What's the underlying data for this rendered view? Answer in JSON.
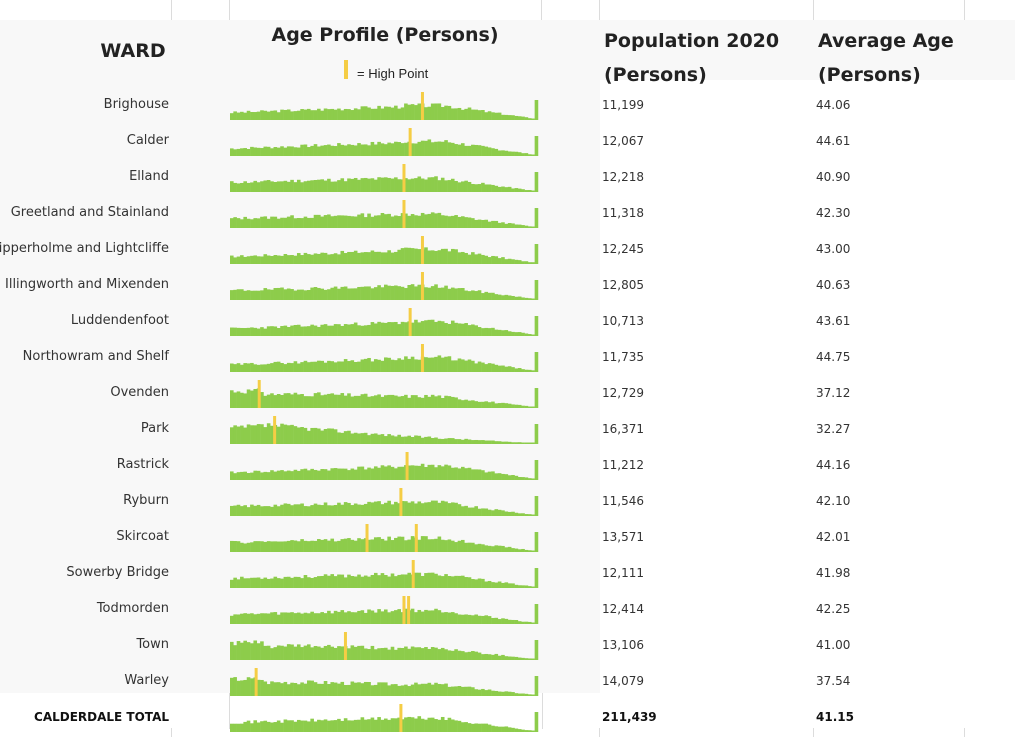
{
  "headers": {
    "ward": "WARD",
    "age_profile": "Age Profile (Persons)",
    "population_line1": "Population 2020",
    "population_line2": "(Persons)",
    "average_line1": "Average Age",
    "average_line2": "(Persons)"
  },
  "legend": {
    "label": "= High Point",
    "color": "#f5cd45"
  },
  "colors": {
    "bar": "#8dcc4b",
    "highlight": "#f5cd45"
  },
  "rows": [
    {
      "ward": "Brighouse",
      "population": "11,199",
      "average_age": "44.06",
      "peak": [
        0.62
      ],
      "seed": 3,
      "profile": "older"
    },
    {
      "ward": "Calder",
      "population": "12,067",
      "average_age": "44.61",
      "peak": [
        0.58
      ],
      "seed": 7,
      "profile": "older"
    },
    {
      "ward": "Elland",
      "population": "12,218",
      "average_age": "40.90",
      "peak": [
        0.56
      ],
      "seed": 11,
      "profile": "mid"
    },
    {
      "ward": "Greetland and Stainland",
      "population": "11,318",
      "average_age": "42.30",
      "peak": [
        0.56
      ],
      "seed": 13,
      "profile": "mid"
    },
    {
      "ward": "Hipperholme and Lightcliffe",
      "population": "12,245",
      "average_age": "43.00",
      "peak": [
        0.62
      ],
      "seed": 17,
      "profile": "older"
    },
    {
      "ward": "Illingworth and Mixenden",
      "population": "12,805",
      "average_age": "40.63",
      "peak": [
        0.62
      ],
      "seed": 19,
      "profile": "mid"
    },
    {
      "ward": "Luddendenfoot",
      "population": "10,713",
      "average_age": "43.61",
      "peak": [
        0.58
      ],
      "seed": 23,
      "profile": "older"
    },
    {
      "ward": "Northowram and Shelf",
      "population": "11,735",
      "average_age": "44.75",
      "peak": [
        0.62
      ],
      "seed": 29,
      "profile": "older"
    },
    {
      "ward": "Ovenden",
      "population": "12,729",
      "average_age": "37.12",
      "peak": [
        0.09
      ],
      "seed": 31,
      "profile": "young"
    },
    {
      "ward": "Park",
      "population": "16,371",
      "average_age": "32.27",
      "peak": [
        0.14
      ],
      "seed": 37,
      "profile": "veryyoung"
    },
    {
      "ward": "Rastrick",
      "population": "11,212",
      "average_age": "44.16",
      "peak": [
        0.57
      ],
      "seed": 41,
      "profile": "older"
    },
    {
      "ward": "Ryburn",
      "population": "11,546",
      "average_age": "42.10",
      "peak": [
        0.55
      ],
      "seed": 43,
      "profile": "mid"
    },
    {
      "ward": "Skircoat",
      "population": "13,571",
      "average_age": "42.01",
      "peak": [
        0.44,
        0.6
      ],
      "seed": 47,
      "profile": "mid"
    },
    {
      "ward": "Sowerby Bridge",
      "population": "12,111",
      "average_age": "41.98",
      "peak": [
        0.59
      ],
      "seed": 53,
      "profile": "mid"
    },
    {
      "ward": "Todmorden",
      "population": "12,414",
      "average_age": "42.25",
      "peak": [
        0.56,
        0.575
      ],
      "seed": 59,
      "profile": "mid"
    },
    {
      "ward": "Town",
      "population": "13,106",
      "average_age": "41.00",
      "peak": [
        0.37
      ],
      "seed": 61,
      "profile": "young"
    },
    {
      "ward": "Warley",
      "population": "14,079",
      "average_age": "37.54",
      "peak": [
        0.08
      ],
      "seed": 67,
      "profile": "young"
    }
  ],
  "total": {
    "ward": "CALDERDALE TOTAL",
    "population": "211,439",
    "average_age": "41.15",
    "peak": [
      0.55
    ],
    "seed": 71,
    "profile": "mid"
  }
}
